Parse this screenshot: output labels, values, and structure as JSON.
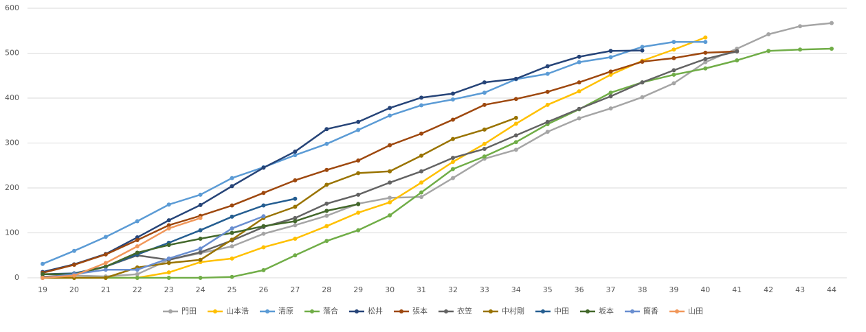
{
  "chart_data": {
    "type": "line",
    "categories": [
      "19",
      "20",
      "21",
      "22",
      "23",
      "24",
      "25",
      "26",
      "27",
      "28",
      "29",
      "30",
      "31",
      "32",
      "33",
      "34",
      "35",
      "36",
      "37",
      "38",
      "39",
      "40",
      "41",
      "42",
      "43",
      "44"
    ],
    "ylim": [
      0,
      600
    ],
    "yticks": [
      0,
      100,
      200,
      300,
      400,
      500,
      600
    ],
    "grid": true,
    "legend": "bottom",
    "series": [
      {
        "name": "門田",
        "color": "#a5a5a5",
        "values": [
          0,
          5,
          3,
          8,
          40,
          55,
          70,
          98,
          117,
          138,
          165,
          178,
          180,
          222,
          265,
          285,
          325,
          355,
          377,
          402,
          433,
          480,
          510,
          542,
          560,
          567
        ]
      },
      {
        "name": "山本浩",
        "color": "#ffc000",
        "values": [
          0,
          0,
          0,
          0,
          12,
          35,
          43,
          68,
          87,
          115,
          145,
          168,
          212,
          258,
          298,
          343,
          385,
          415,
          452,
          483,
          508,
          535,
          null,
          null,
          null,
          null
        ]
      },
      {
        "name": "清原",
        "color": "#5b9bd5",
        "values": [
          31,
          60,
          91,
          126,
          163,
          185,
          222,
          246,
          273,
          298,
          329,
          361,
          384,
          397,
          412,
          442,
          454,
          480,
          491,
          514,
          525,
          525,
          null,
          null,
          null,
          null
        ]
      },
      {
        "name": "落合",
        "color": "#70ad47",
        "values": [
          0,
          0,
          0,
          0,
          0,
          0,
          2,
          17,
          50,
          82,
          106,
          139,
          190,
          242,
          270,
          302,
          342,
          375,
          412,
          435,
          452,
          466,
          484,
          505,
          508,
          510
        ]
      },
      {
        "name": "松井",
        "color": "#264478",
        "values": [
          13,
          30,
          53,
          90,
          128,
          162,
          204,
          245,
          281,
          331,
          347,
          378,
          401,
          410,
          435,
          443,
          471,
          492,
          505,
          506,
          null,
          null,
          null,
          null,
          null,
          null
        ]
      },
      {
        "name": "張本",
        "color": "#9e480e",
        "values": [
          11,
          29,
          52,
          84,
          117,
          138,
          161,
          189,
          217,
          240,
          261,
          295,
          321,
          352,
          385,
          398,
          414,
          435,
          459,
          481,
          489,
          501,
          504,
          null,
          null,
          null
        ]
      },
      {
        "name": "衣笠",
        "color": "#636363",
        "values": [
          2,
          7,
          25,
          50,
          40,
          57,
          83,
          113,
          133,
          165,
          185,
          212,
          237,
          267,
          287,
          317,
          347,
          376,
          404,
          435,
          462,
          487,
          504,
          null,
          null,
          null
        ]
      },
      {
        "name": "中村剛",
        "color": "#997300",
        "values": [
          0,
          0,
          0,
          23,
          33,
          40,
          85,
          133,
          158,
          207,
          233,
          237,
          272,
          309,
          330,
          356,
          null,
          null,
          null,
          null,
          null,
          null,
          null,
          null,
          null,
          null
        ]
      },
      {
        "name": "中田",
        "color": "#255e91",
        "values": [
          8,
          10,
          25,
          52,
          78,
          106,
          136,
          161,
          176,
          null,
          null,
          null,
          null,
          null,
          null,
          null,
          null,
          null,
          null,
          null,
          null,
          null,
          null,
          null,
          null,
          null
        ]
      },
      {
        "name": "坂本",
        "color": "#43682b",
        "values": [
          8,
          8,
          25,
          56,
          73,
          87,
          100,
          115,
          126,
          149,
          164,
          null,
          null,
          null,
          null,
          null,
          null,
          null,
          null,
          null,
          null,
          null,
          null,
          null,
          null,
          null
        ]
      },
      {
        "name": "簡香",
        "color": "#698ed0",
        "values": [
          0,
          8,
          18,
          18,
          43,
          65,
          110,
          137,
          null,
          null,
          null,
          null,
          null,
          null,
          null,
          null,
          null,
          null,
          null,
          null,
          null,
          null,
          null,
          null,
          null,
          null
        ]
      },
      {
        "name": "山田",
        "color": "#f1975a",
        "values": [
          0,
          5,
          33,
          70,
          110,
          133,
          null,
          null,
          null,
          null,
          null,
          null,
          null,
          null,
          null,
          null,
          null,
          null,
          null,
          null,
          null,
          null,
          null,
          null,
          null,
          null
        ]
      }
    ]
  }
}
